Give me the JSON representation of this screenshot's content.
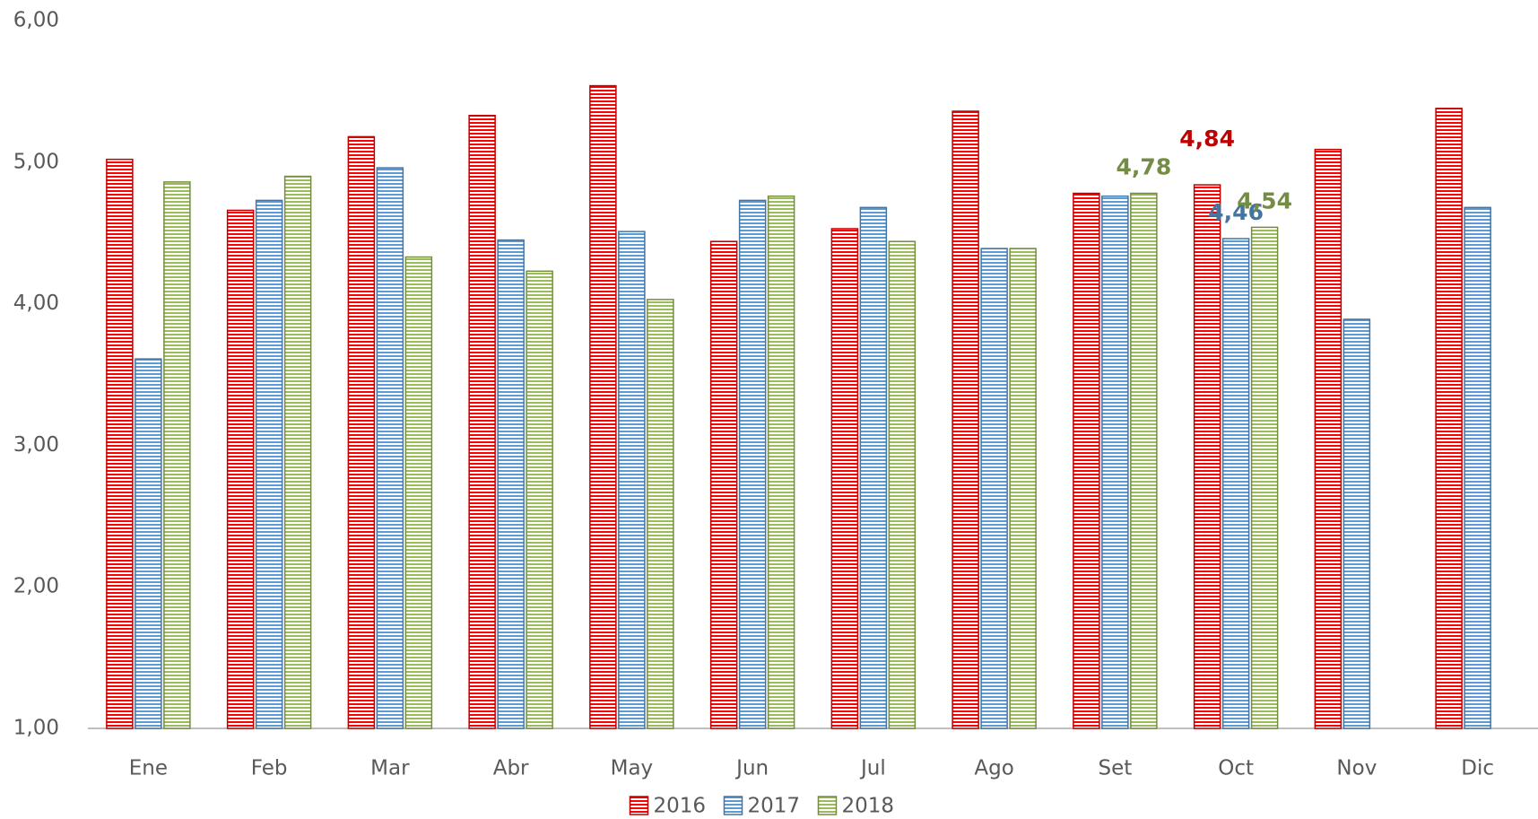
{
  "chart_data": {
    "type": "bar",
    "categories": [
      "Ene",
      "Feb",
      "Mar",
      "Abr",
      "May",
      "Jun",
      "Jul",
      "Ago",
      "Set",
      "Oct",
      "Nov",
      "Dic"
    ],
    "series": [
      {
        "name": "2016",
        "color": "#ff0000",
        "values": [
          5.02,
          4.66,
          5.18,
          5.33,
          5.54,
          4.44,
          4.53,
          5.36,
          4.78,
          4.84,
          5.09,
          5.38
        ],
        "value_labels": [
          null,
          null,
          null,
          null,
          null,
          null,
          null,
          null,
          null,
          "4,84",
          null,
          null
        ]
      },
      {
        "name": "2017",
        "color": "#5b9bd5",
        "values": [
          3.61,
          4.73,
          4.96,
          4.45,
          4.51,
          4.73,
          4.68,
          4.39,
          4.76,
          4.46,
          3.89,
          4.68
        ],
        "value_labels": [
          null,
          null,
          null,
          null,
          null,
          null,
          null,
          null,
          null,
          "4,46",
          null,
          null
        ]
      },
      {
        "name": "2018",
        "color": "#9bbb59",
        "values": [
          4.86,
          4.9,
          4.33,
          4.23,
          4.03,
          4.76,
          4.44,
          4.39,
          4.78,
          4.54,
          null,
          null
        ],
        "value_labels": [
          null,
          null,
          null,
          null,
          null,
          null,
          null,
          null,
          "4,78",
          "4,54",
          null,
          null
        ]
      }
    ],
    "ylim": [
      1,
      6
    ],
    "yticks": [
      {
        "value": 1,
        "label": "1,00"
      },
      {
        "value": 2,
        "label": "2,00"
      },
      {
        "value": 3,
        "label": "3,00"
      },
      {
        "value": 4,
        "label": "4,00"
      },
      {
        "value": 5,
        "label": "5,00"
      },
      {
        "value": 6,
        "label": "6,00"
      }
    ],
    "legend": "bottom"
  }
}
